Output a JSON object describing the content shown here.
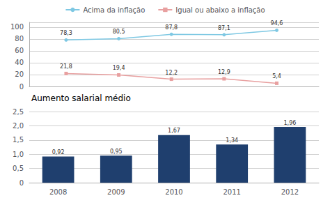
{
  "chart_data": [
    {
      "type": "line",
      "x": [
        2008,
        2009,
        2010,
        2011,
        2012
      ],
      "xlim": [
        2007.3,
        2012.8
      ],
      "ylim": [
        0,
        108
      ],
      "yticks": [
        0,
        20,
        40,
        60,
        80,
        100
      ],
      "tick_labels": "y",
      "grid": true,
      "legend": "top",
      "data_labels": true,
      "series": [
        {
          "name": "Acima da inflação",
          "color": "#7EC8E3",
          "marker": "circle",
          "values": [
            78.3,
            80.5,
            87.8,
            87.1,
            94.6
          ],
          "value_labels": [
            "78,3",
            "80,5",
            "87,8",
            "87,1",
            "94,6"
          ]
        },
        {
          "name": "Igual ou abaixo a inflação",
          "color": "#E8A0A0",
          "marker": "square",
          "values": [
            21.8,
            19.4,
            12.2,
            12.9,
            5.4
          ],
          "value_labels": [
            "21,8",
            "19,4",
            "12,2",
            "12,9",
            "5,4"
          ]
        }
      ]
    },
    {
      "type": "bar",
      "title": "Aumento salarial médio",
      "categories": [
        "2008",
        "2009",
        "2010",
        "2011",
        "2012"
      ],
      "values": [
        0.92,
        0.95,
        1.67,
        1.34,
        1.96
      ],
      "value_labels": [
        "0,92",
        "0,95",
        "1,67",
        "1,34",
        "1,96"
      ],
      "color": "#1F3F6E",
      "ylim": [
        0,
        2.5
      ],
      "yticks": [
        0,
        {
          "value": 0.5,
          "label": "0,5"
        },
        {
          "value": 1.0,
          "label": "1,0"
        },
        {
          "value": 1.5,
          "label": "1,5"
        },
        {
          "value": 2.0,
          "label": "2,0"
        },
        {
          "value": 2.5,
          "label": "2,5"
        }
      ],
      "grid": true,
      "data_labels": true
    }
  ]
}
